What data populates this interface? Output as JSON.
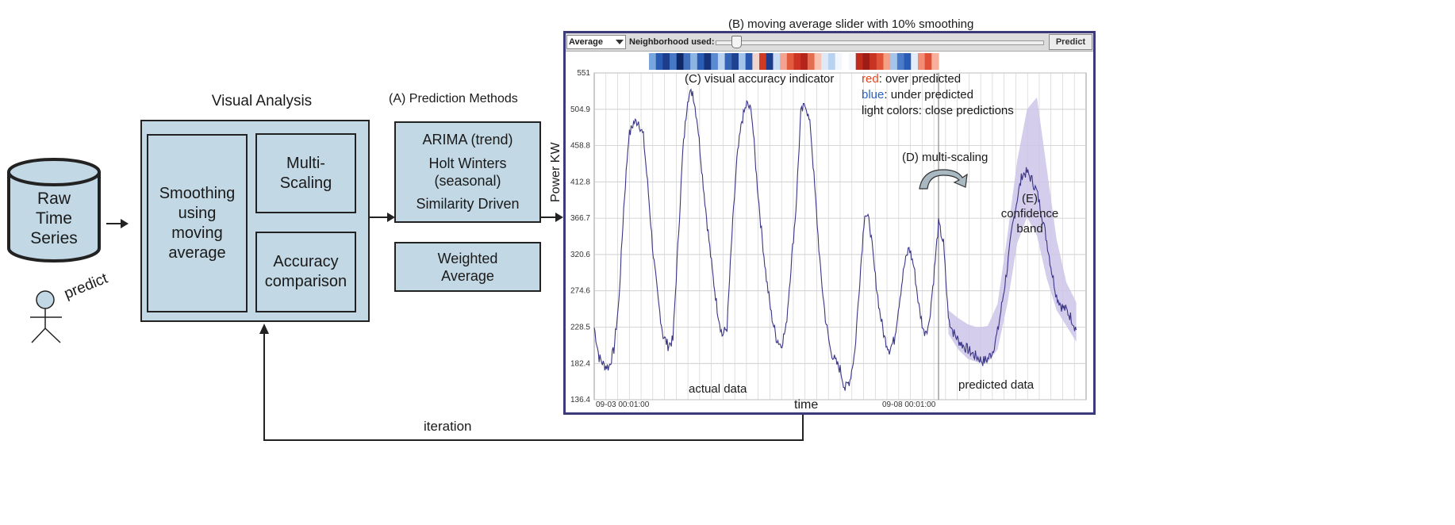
{
  "raw_time_series": "Raw\nTime\nSeries",
  "predict": "predict",
  "visual_analysis": {
    "title": "Visual Analysis",
    "smoothing": "Smoothing\nusing\nmoving\naverage",
    "multi_scaling": "Multi-\nScaling",
    "accuracy": "Accuracy\ncomparison"
  },
  "prediction_methods": {
    "title": "(A) Prediction Methods",
    "methods": [
      "ARIMA (trend)",
      "Holt Winters\n(seasonal)",
      "Similarity Driven"
    ],
    "weighted": "Weighted\nAverage"
  },
  "iteration": "iteration",
  "annotations": {
    "slider": "(B) moving average slider with 10% smoothing",
    "accuracy_indicator": "(C) visual accuracy indicator",
    "red_word": "red",
    "red_rest": ": over predicted",
    "blue_word": "blue",
    "blue_rest": ": under predicted",
    "light": "light colors: close predictions",
    "multi_scaling": "(D) multi-scaling",
    "confidence": "(E)\nconfidence\nband",
    "actual": "actual data",
    "predicted": "predicted data"
  },
  "toolbar": {
    "method_select": "Average",
    "neighborhood_label": "Neighborhood used:",
    "slider_value": 0.06,
    "predict_button": "Predict"
  },
  "colors": {
    "box_fill": "#c2d8e4",
    "over_predicted": "#e8441c",
    "under_predicted": "#2a62c2",
    "series_line": "#3a3585",
    "band": "#cdc4e8"
  },
  "chart_data": {
    "type": "line",
    "ylabel": "Power KW",
    "xlabel": "time",
    "y_ticks": [
      "551",
      "504.9",
      "458.8",
      "412.8",
      "366.7",
      "320.6",
      "274.6",
      "228.5",
      "182.4",
      "136.4"
    ],
    "ylim": [
      136.4,
      551
    ],
    "x_tick_labels": [
      "09-03 00:01:00",
      "09-08 00:01:00"
    ],
    "x_domain": [
      0,
      100
    ],
    "prediction_start": 70,
    "actual": [
      [
        0,
        228
      ],
      [
        1,
        190
      ],
      [
        2,
        180
      ],
      [
        3,
        178
      ],
      [
        4,
        200
      ],
      [
        5,
        260
      ],
      [
        6,
        380
      ],
      [
        7,
        470
      ],
      [
        8,
        488
      ],
      [
        9,
        490
      ],
      [
        10,
        470
      ],
      [
        11,
        400
      ],
      [
        12,
        320
      ],
      [
        13,
        262
      ],
      [
        14,
        218
      ],
      [
        15,
        205
      ],
      [
        16,
        212
      ],
      [
        17,
        330
      ],
      [
        18,
        450
      ],
      [
        19,
        520
      ],
      [
        20,
        528
      ],
      [
        21,
        488
      ],
      [
        22,
        420
      ],
      [
        23,
        358
      ],
      [
        24,
        300
      ],
      [
        25,
        252
      ],
      [
        26,
        218
      ],
      [
        27,
        228
      ],
      [
        28,
        345
      ],
      [
        29,
        440
      ],
      [
        30,
        490
      ],
      [
        31,
        512
      ],
      [
        32,
        502
      ],
      [
        33,
        420
      ],
      [
        34,
        350
      ],
      [
        35,
        290
      ],
      [
        36,
        245
      ],
      [
        37,
        215
      ],
      [
        38,
        205
      ],
      [
        39,
        228
      ],
      [
        40,
        305
      ],
      [
        41,
        378
      ],
      [
        42,
        500
      ],
      [
        43,
        512
      ],
      [
        44,
        480
      ],
      [
        45,
        390
      ],
      [
        46,
        300
      ],
      [
        47,
        240
      ],
      [
        48,
        200
      ],
      [
        49,
        185
      ],
      [
        50,
        175
      ],
      [
        51,
        150
      ],
      [
        52,
        162
      ],
      [
        53,
        198
      ],
      [
        54,
        290
      ],
      [
        55,
        375
      ],
      [
        56,
        360
      ],
      [
        57,
        300
      ],
      [
        58,
        250
      ],
      [
        59,
        215
      ],
      [
        60,
        200
      ],
      [
        61,
        212
      ],
      [
        62,
        260
      ],
      [
        63,
        305
      ],
      [
        64,
        330
      ],
      [
        65,
        305
      ],
      [
        66,
        255
      ],
      [
        67,
        222
      ],
      [
        68,
        230
      ],
      [
        69,
        290
      ],
      [
        70,
        360
      ],
      [
        71,
        335
      ],
      [
        72,
        240
      ]
    ],
    "predicted": [
      [
        72,
        240
      ],
      [
        73,
        222
      ],
      [
        74,
        212
      ],
      [
        75,
        205
      ],
      [
        76,
        200
      ],
      [
        77,
        194
      ],
      [
        78,
        190
      ],
      [
        79,
        185
      ],
      [
        80,
        188
      ],
      [
        81,
        198
      ],
      [
        82,
        222
      ],
      [
        83,
        262
      ],
      [
        84,
        305
      ],
      [
        85,
        355
      ],
      [
        86,
        392
      ],
      [
        87,
        422
      ],
      [
        88,
        425
      ],
      [
        89,
        415
      ],
      [
        90,
        400
      ],
      [
        91,
        372
      ],
      [
        92,
        338
      ],
      [
        93,
        300
      ],
      [
        94,
        268
      ],
      [
        95,
        255
      ],
      [
        96,
        250
      ],
      [
        97,
        240
      ],
      [
        98,
        225
      ]
    ],
    "band_upper": [
      [
        72,
        250
      ],
      [
        74,
        240
      ],
      [
        76,
        232
      ],
      [
        78,
        228
      ],
      [
        80,
        230
      ],
      [
        82,
        258
      ],
      [
        84,
        345
      ],
      [
        86,
        440
      ],
      [
        88,
        505
      ],
      [
        90,
        520
      ],
      [
        92,
        430
      ],
      [
        94,
        340
      ],
      [
        96,
        285
      ],
      [
        98,
        260
      ]
    ],
    "band_lower": [
      [
        72,
        220
      ],
      [
        74,
        200
      ],
      [
        76,
        188
      ],
      [
        78,
        184
      ],
      [
        80,
        184
      ],
      [
        82,
        200
      ],
      [
        84,
        258
      ],
      [
        86,
        335
      ],
      [
        88,
        368
      ],
      [
        90,
        345
      ],
      [
        92,
        290
      ],
      [
        94,
        250
      ],
      [
        96,
        230
      ],
      [
        98,
        210
      ]
    ],
    "accuracy_strip": [
      "#7aa6de",
      "#2a5cb3",
      "#1d3c8c",
      "#4678c6",
      "#0f2868",
      "#3f6fbd",
      "#8db5e3",
      "#2a5cb3",
      "#16337a",
      "#5a8ad0",
      "#b8d2ef",
      "#3565b5",
      "#1e428f",
      "#a2c4eb",
      "#2a58b0",
      "#f1d4cb",
      "#d03a22",
      "#1d3c8c",
      "#c9ddf2",
      "#f4a390",
      "#e25b3c",
      "#cc3322",
      "#b3241a",
      "#e66e50",
      "#f9c3b2",
      "#dfe9f6",
      "#b9d2ef",
      "#f3f6fb",
      "#ffffff",
      "#f3f6fb",
      "#bf2c1e",
      "#9e1c16",
      "#c83424",
      "#e0553a",
      "#f4a085",
      "#a5c4ea",
      "#4a7bc8",
      "#2a5cb3",
      "#e3ecf7",
      "#f28c74",
      "#e05038",
      "#f6b09c"
    ]
  }
}
